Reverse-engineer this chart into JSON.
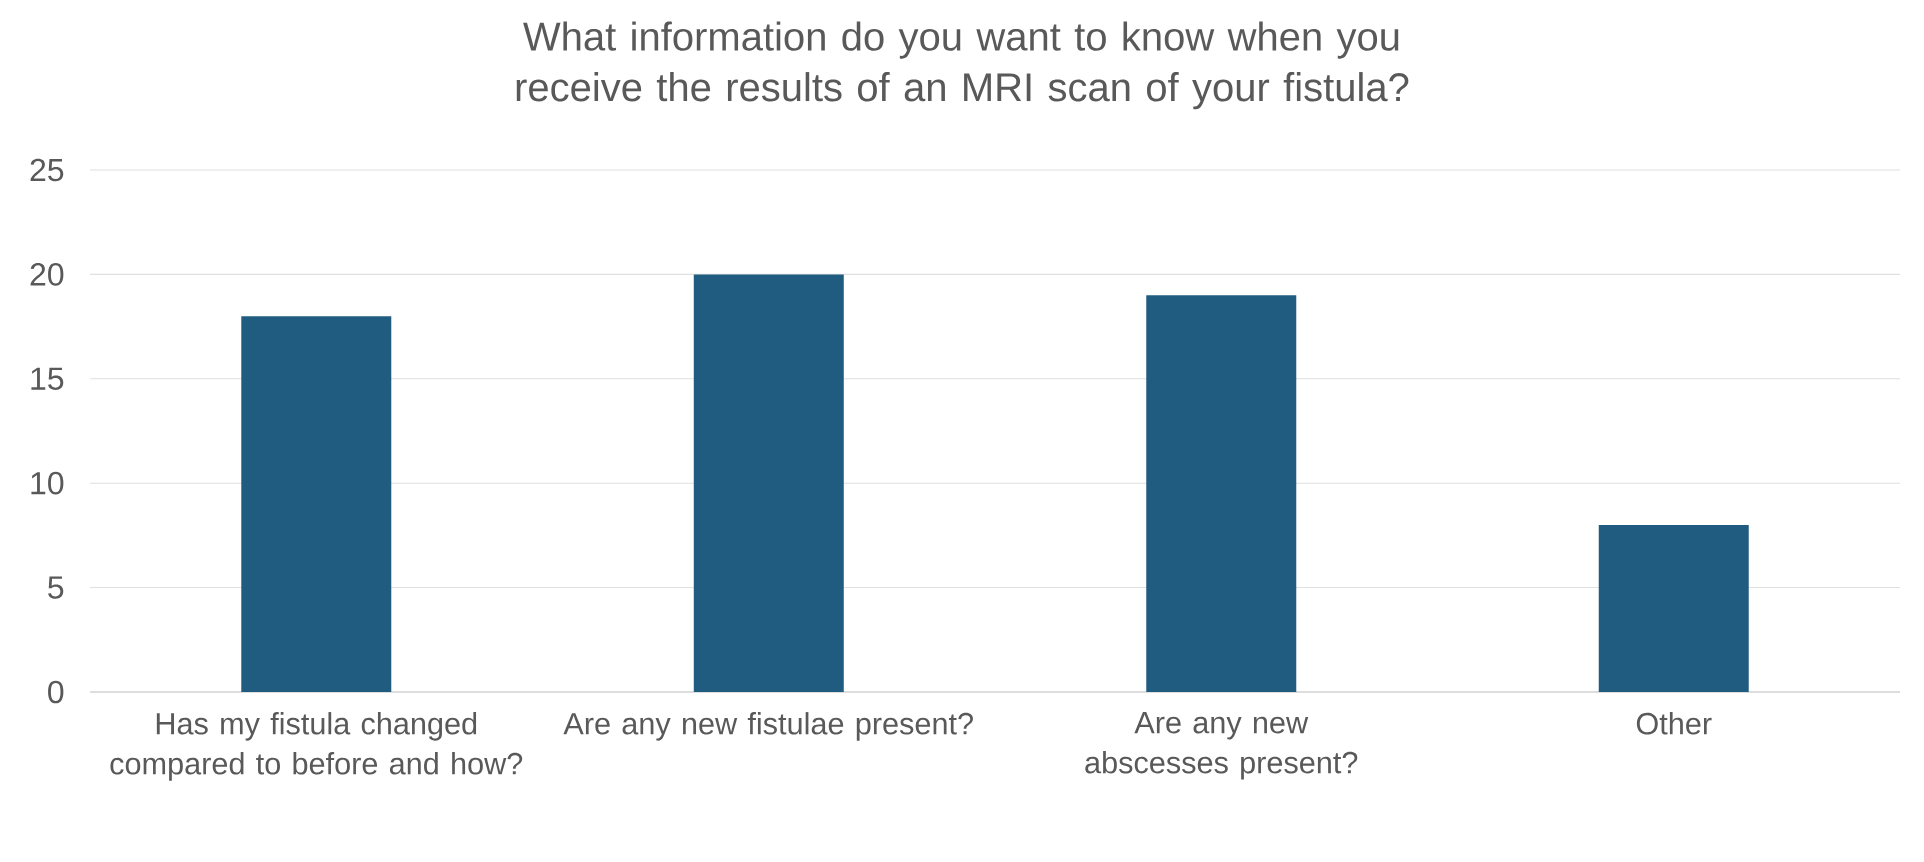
{
  "chart_data": {
    "type": "bar",
    "title": "What information do you want to know when you receive the results of an MRI scan of your fistula?",
    "categories": [
      "Has my fistula changed compared to before and how?",
      "Are any new fistulae present?",
      "Are any new abscesses present?",
      "Other"
    ],
    "values": [
      18,
      20,
      19,
      8
    ],
    "color": "#1f5c7f",
    "ylim": [
      0,
      25
    ],
    "yticks": [
      0,
      5,
      10,
      15,
      20,
      25
    ],
    "grid": "y"
  }
}
